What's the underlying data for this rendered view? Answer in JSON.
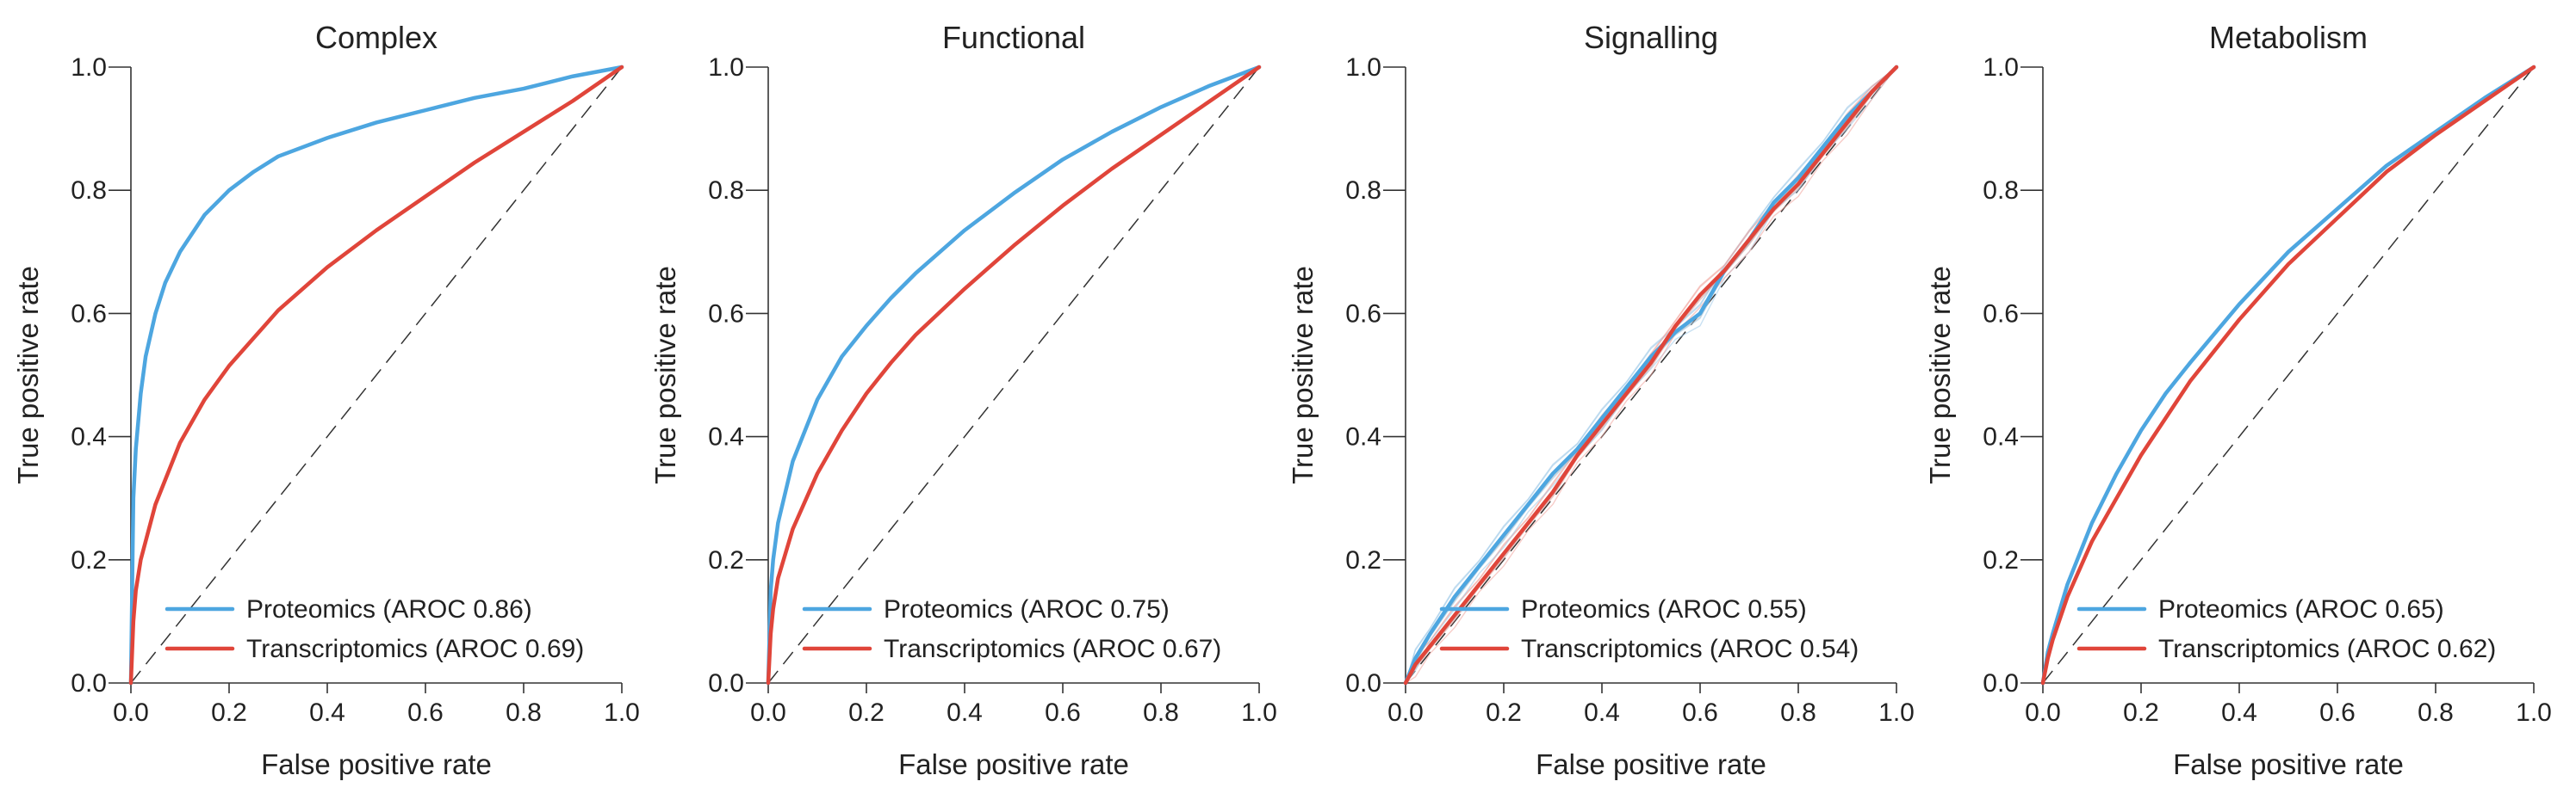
{
  "colors": {
    "proteomics": "#4da6e0",
    "transcriptomics": "#e0453a",
    "faint": "#b8b8b8"
  },
  "chart_data": [
    {
      "type": "line",
      "title": "Complex",
      "xlabel": "False positive rate",
      "ylabel": "True positive rate",
      "xlim": [
        0,
        1
      ],
      "ylim": [
        0,
        1
      ],
      "xticks": [
        "0.0",
        "0.2",
        "0.4",
        "0.6",
        "0.8",
        "1.0"
      ],
      "yticks": [
        "0.0",
        "0.2",
        "0.4",
        "0.6",
        "0.8",
        "1.0"
      ],
      "grid": false,
      "legend_position": "bottom-right",
      "diagonal": true,
      "series": [
        {
          "name": "Proteomics (AROC 0.86)",
          "color_key": "proteomics",
          "x": [
            0,
            0.005,
            0.01,
            0.02,
            0.03,
            0.05,
            0.07,
            0.1,
            0.15,
            0.2,
            0.25,
            0.3,
            0.4,
            0.5,
            0.6,
            0.7,
            0.8,
            0.9,
            1.0
          ],
          "y": [
            0,
            0.3,
            0.38,
            0.47,
            0.53,
            0.6,
            0.65,
            0.7,
            0.76,
            0.8,
            0.83,
            0.855,
            0.885,
            0.91,
            0.93,
            0.95,
            0.965,
            0.985,
            1.0
          ]
        },
        {
          "name": "Transcriptomics (AROC 0.69)",
          "color_key": "transcriptomics",
          "x": [
            0,
            0.005,
            0.01,
            0.02,
            0.05,
            0.1,
            0.15,
            0.2,
            0.25,
            0.3,
            0.4,
            0.5,
            0.6,
            0.7,
            0.8,
            0.9,
            1.0
          ],
          "y": [
            0,
            0.1,
            0.15,
            0.2,
            0.29,
            0.39,
            0.46,
            0.515,
            0.56,
            0.605,
            0.675,
            0.735,
            0.79,
            0.845,
            0.895,
            0.945,
            1.0
          ]
        }
      ]
    },
    {
      "type": "line",
      "title": "Functional",
      "xlabel": "False positive rate",
      "ylabel": "True positive rate",
      "xlim": [
        0,
        1
      ],
      "ylim": [
        0,
        1
      ],
      "xticks": [
        "0.0",
        "0.2",
        "0.4",
        "0.6",
        "0.8",
        "1.0"
      ],
      "yticks": [
        "0.0",
        "0.2",
        "0.4",
        "0.6",
        "0.8",
        "1.0"
      ],
      "grid": false,
      "legend_position": "bottom-right",
      "diagonal": true,
      "series": [
        {
          "name": "Proteomics (AROC 0.75)",
          "color_key": "proteomics",
          "x": [
            0,
            0.005,
            0.01,
            0.02,
            0.05,
            0.1,
            0.15,
            0.2,
            0.25,
            0.3,
            0.4,
            0.5,
            0.6,
            0.7,
            0.8,
            0.9,
            1.0
          ],
          "y": [
            0,
            0.15,
            0.2,
            0.26,
            0.36,
            0.46,
            0.53,
            0.58,
            0.625,
            0.665,
            0.735,
            0.795,
            0.85,
            0.895,
            0.935,
            0.97,
            1.0
          ]
        },
        {
          "name": "Transcriptomics (AROC 0.67)",
          "color_key": "transcriptomics",
          "x": [
            0,
            0.005,
            0.01,
            0.02,
            0.05,
            0.1,
            0.15,
            0.2,
            0.25,
            0.3,
            0.4,
            0.5,
            0.6,
            0.7,
            0.8,
            0.9,
            1.0
          ],
          "y": [
            0,
            0.08,
            0.12,
            0.17,
            0.25,
            0.34,
            0.41,
            0.47,
            0.52,
            0.565,
            0.64,
            0.71,
            0.775,
            0.835,
            0.89,
            0.945,
            1.0
          ]
        }
      ]
    },
    {
      "type": "line",
      "title": "Signalling",
      "xlabel": "False positive rate",
      "ylabel": "True positive rate",
      "xlim": [
        0,
        1
      ],
      "ylim": [
        0,
        1
      ],
      "xticks": [
        "0.0",
        "0.2",
        "0.4",
        "0.6",
        "0.8",
        "1.0"
      ],
      "yticks": [
        "0.0",
        "0.2",
        "0.4",
        "0.6",
        "0.8",
        "1.0"
      ],
      "grid": false,
      "legend_position": "bottom-right",
      "diagonal": true,
      "series": [
        {
          "name": "Proteomics (AROC 0.55)",
          "color_key": "proteomics",
          "x": [
            0,
            0.02,
            0.05,
            0.1,
            0.15,
            0.2,
            0.25,
            0.3,
            0.35,
            0.4,
            0.45,
            0.5,
            0.55,
            0.6,
            0.65,
            0.7,
            0.75,
            0.8,
            0.85,
            0.9,
            0.95,
            1.0
          ],
          "y": [
            0,
            0.04,
            0.08,
            0.14,
            0.19,
            0.24,
            0.29,
            0.34,
            0.38,
            0.43,
            0.48,
            0.53,
            0.57,
            0.6,
            0.67,
            0.72,
            0.78,
            0.82,
            0.87,
            0.92,
            0.96,
            1.0
          ]
        },
        {
          "name": "Transcriptomics (AROC 0.54)",
          "color_key": "transcriptomics",
          "x": [
            0,
            0.02,
            0.05,
            0.1,
            0.15,
            0.2,
            0.25,
            0.3,
            0.35,
            0.4,
            0.45,
            0.5,
            0.55,
            0.6,
            0.65,
            0.7,
            0.75,
            0.8,
            0.85,
            0.9,
            0.95,
            1.0
          ],
          "y": [
            0,
            0.03,
            0.06,
            0.11,
            0.16,
            0.21,
            0.26,
            0.31,
            0.37,
            0.42,
            0.47,
            0.52,
            0.58,
            0.63,
            0.67,
            0.72,
            0.77,
            0.81,
            0.86,
            0.91,
            0.96,
            1.0
          ]
        }
      ],
      "faint_offsets": [
        -0.015,
        -0.008,
        0.006,
        0.013,
        0.02
      ]
    },
    {
      "type": "line",
      "title": "Metabolism",
      "xlabel": "False positive rate",
      "ylabel": "True positive rate",
      "xlim": [
        0,
        1
      ],
      "ylim": [
        0,
        1
      ],
      "xticks": [
        "0.0",
        "0.2",
        "0.4",
        "0.6",
        "0.8",
        "1.0"
      ],
      "yticks": [
        "0.0",
        "0.2",
        "0.4",
        "0.6",
        "0.8",
        "1.0"
      ],
      "grid": false,
      "legend_position": "bottom-right",
      "diagonal": true,
      "series": [
        {
          "name": "Proteomics (AROC 0.65)",
          "color_key": "proteomics",
          "x": [
            0,
            0.01,
            0.02,
            0.05,
            0.1,
            0.15,
            0.2,
            0.25,
            0.3,
            0.4,
            0.5,
            0.6,
            0.7,
            0.8,
            0.9,
            1.0
          ],
          "y": [
            0,
            0.05,
            0.08,
            0.16,
            0.26,
            0.34,
            0.41,
            0.47,
            0.52,
            0.615,
            0.7,
            0.77,
            0.84,
            0.895,
            0.95,
            1.0
          ]
        },
        {
          "name": "Transcriptomics (AROC 0.62)",
          "color_key": "transcriptomics",
          "x": [
            0,
            0.01,
            0.02,
            0.05,
            0.1,
            0.15,
            0.2,
            0.25,
            0.3,
            0.4,
            0.5,
            0.6,
            0.7,
            0.8,
            0.9,
            1.0
          ],
          "y": [
            0,
            0.04,
            0.07,
            0.14,
            0.23,
            0.3,
            0.37,
            0.43,
            0.49,
            0.59,
            0.68,
            0.755,
            0.83,
            0.89,
            0.945,
            1.0
          ]
        }
      ]
    }
  ]
}
